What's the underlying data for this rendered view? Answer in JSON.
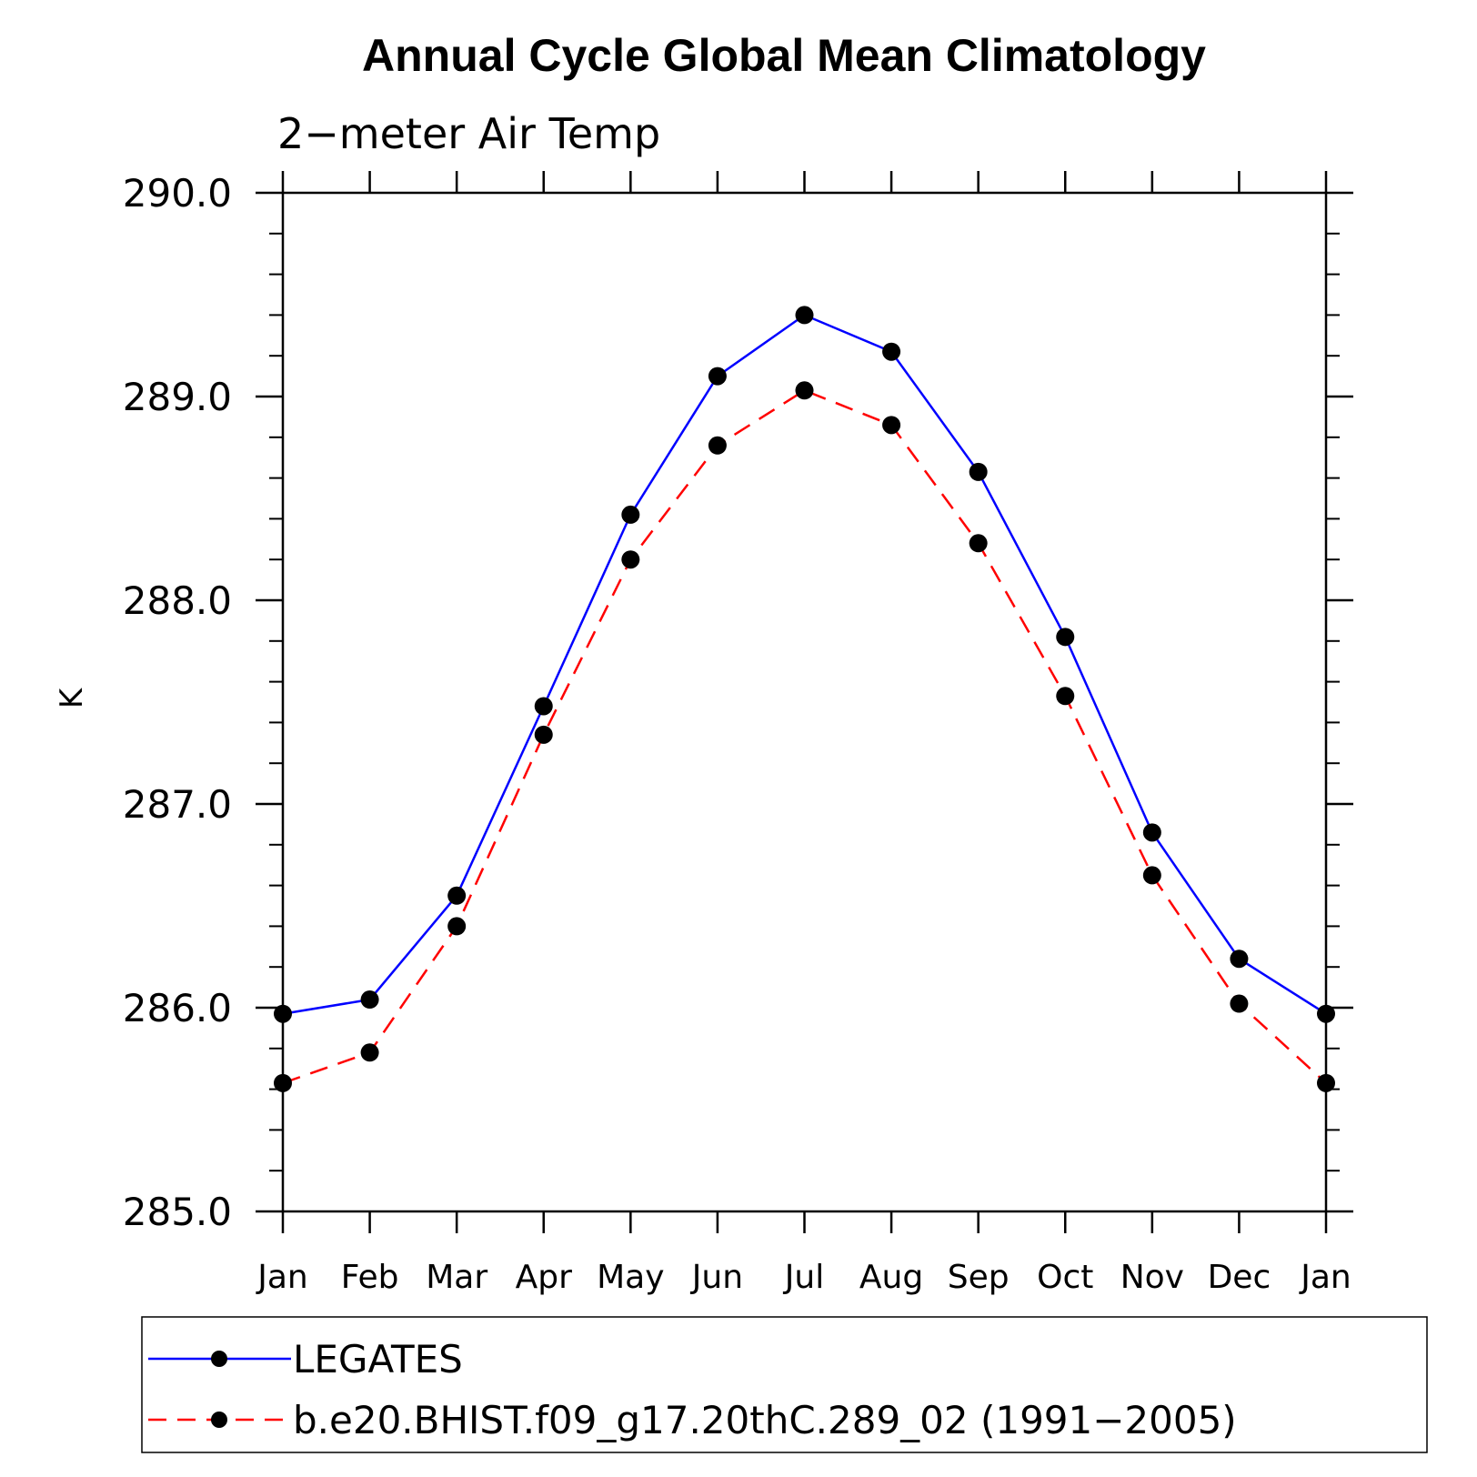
{
  "chart_data": {
    "type": "line",
    "title": "Annual Cycle Global Mean Climatology",
    "subtitle": "2−meter Air Temp",
    "xlabel": "",
    "ylabel": "K",
    "categories": [
      "Jan",
      "Feb",
      "Mar",
      "Apr",
      "May",
      "Jun",
      "Jul",
      "Aug",
      "Sep",
      "Oct",
      "Nov",
      "Dec",
      "Jan"
    ],
    "ylim": [
      285.0,
      290.0
    ],
    "yticks": [
      285.0,
      286.0,
      287.0,
      288.0,
      289.0,
      290.0
    ],
    "ytick_labels": [
      "285.0",
      "286.0",
      "287.0",
      "288.0",
      "289.0",
      "290.0"
    ],
    "minor_ytick_step": 0.2,
    "grid": false,
    "legend_position": "bottom",
    "series": [
      {
        "name": "LEGATES",
        "color": "#0000ff",
        "line_style": "solid",
        "marker": "filled-circle",
        "values": [
          285.97,
          286.04,
          286.55,
          287.48,
          288.42,
          289.1,
          289.4,
          289.22,
          288.63,
          287.82,
          286.86,
          286.24,
          285.97
        ]
      },
      {
        "name": "b.e20.BHIST.f09_g17.20thC.289_02 (1991−2005)",
        "color": "#ff0000",
        "line_style": "dashed",
        "marker": "filled-circle",
        "values": [
          285.63,
          285.78,
          286.4,
          287.34,
          288.2,
          288.76,
          289.03,
          288.86,
          288.28,
          287.53,
          286.65,
          286.02,
          285.63
        ]
      }
    ]
  }
}
